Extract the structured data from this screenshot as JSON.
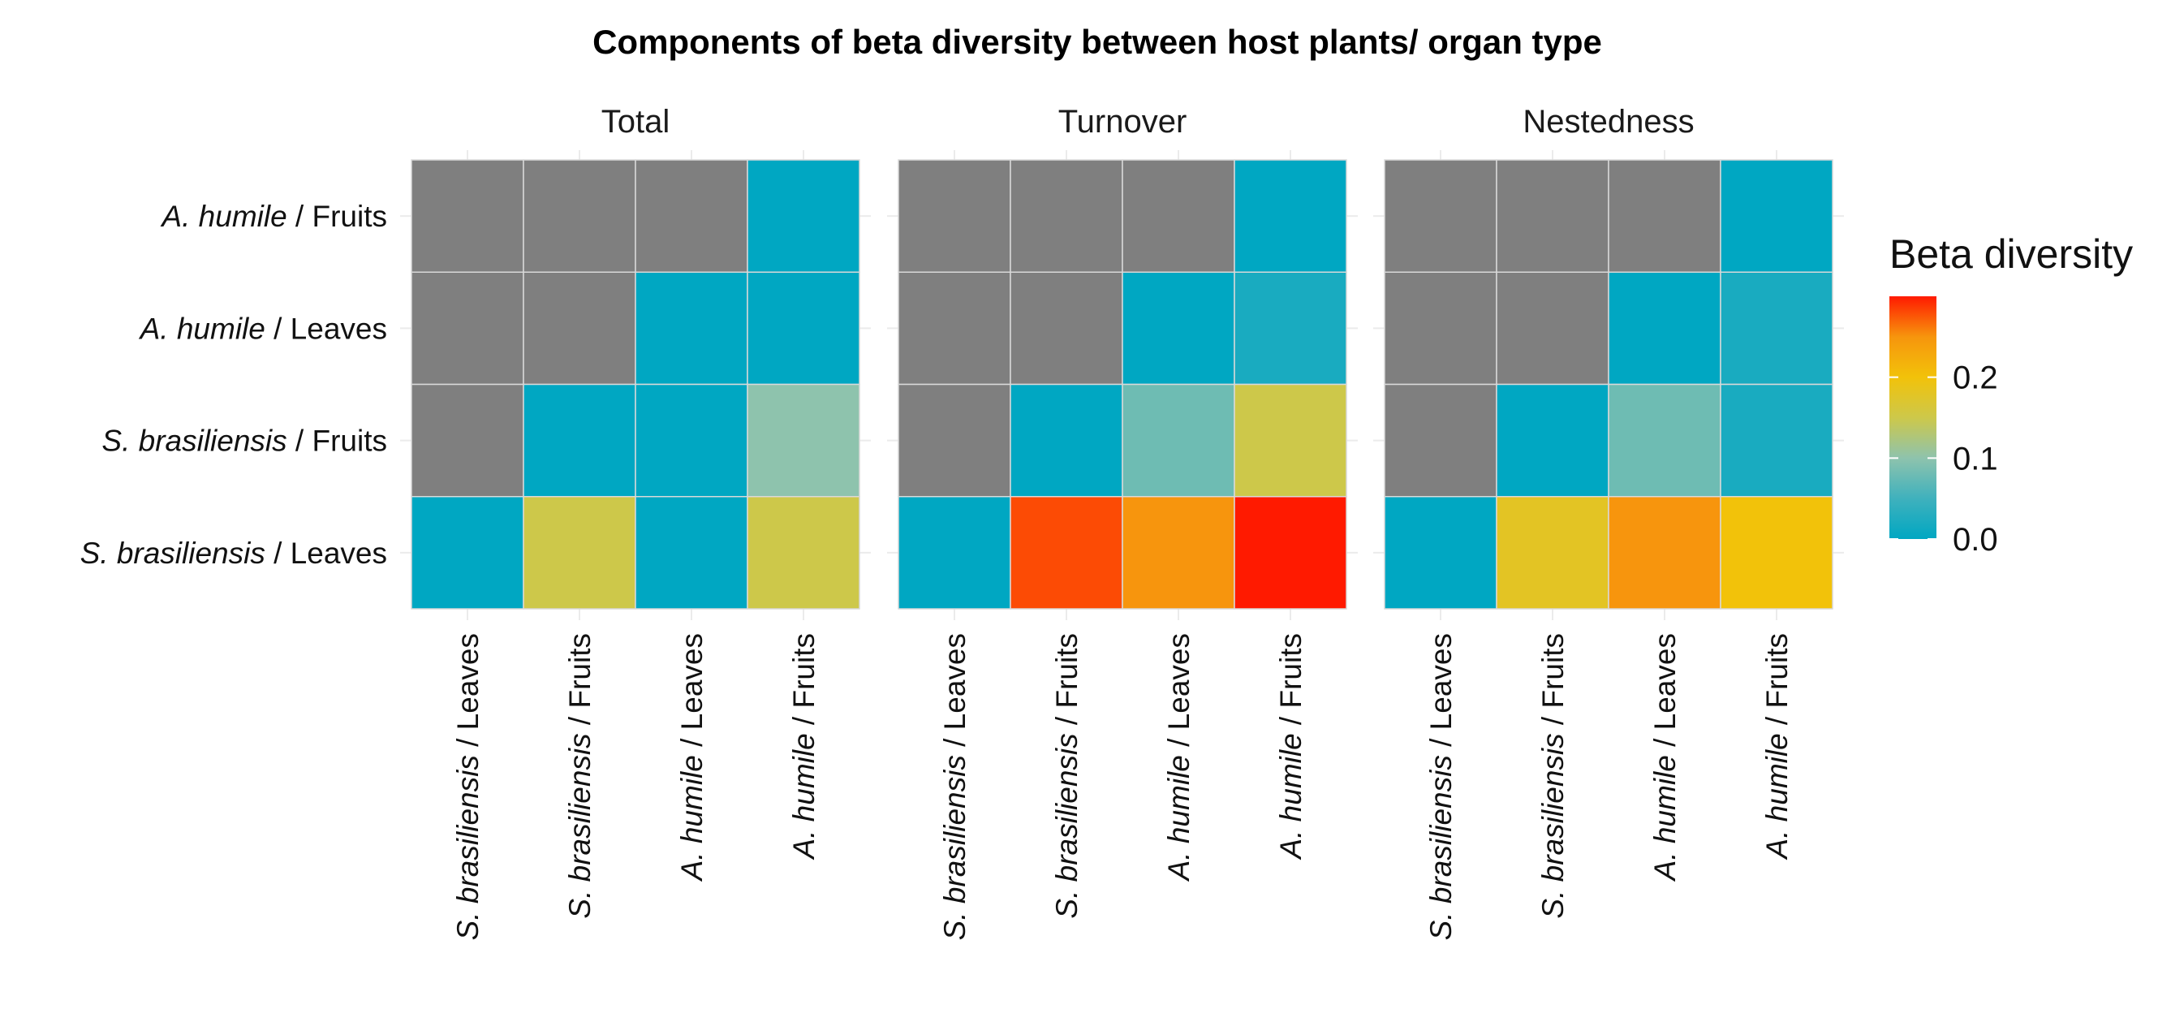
{
  "chart_data": {
    "type": "heatmap",
    "title": "Components of beta diversity between host plants/ organ type",
    "xlabel": "",
    "ylabel": "",
    "x_categories": [
      {
        "italic": "S. brasiliensis",
        "plain": " / Leaves"
      },
      {
        "italic": "S. brasiliensis",
        "plain": " / Fruits"
      },
      {
        "italic": "A. humile",
        "plain": " / Leaves"
      },
      {
        "italic": "A. humile",
        "plain": " / Fruits"
      }
    ],
    "y_categories": [
      {
        "italic": "A. humile",
        "plain": " / Fruits"
      },
      {
        "italic": "A. humile",
        "plain": " / Leaves"
      },
      {
        "italic": "S. brasiliensis",
        "plain": " / Fruits"
      },
      {
        "italic": "S. brasiliensis",
        "plain": " / Leaves"
      }
    ],
    "panels": [
      {
        "label": "Total",
        "values": [
          [
            null,
            null,
            null,
            0.0
          ],
          [
            null,
            null,
            0.0,
            0.0
          ],
          [
            null,
            0.0,
            0.0,
            0.1
          ],
          [
            0.0,
            0.15,
            0.0,
            0.15
          ]
        ]
      },
      {
        "label": "Turnover",
        "values": [
          [
            null,
            null,
            null,
            0.0
          ],
          [
            null,
            null,
            0.0,
            0.02
          ],
          [
            null,
            0.0,
            0.08,
            0.15
          ],
          [
            0.0,
            0.28,
            0.25,
            0.3
          ]
        ]
      },
      {
        "label": "Nestedness",
        "values": [
          [
            null,
            null,
            null,
            0.0
          ],
          [
            null,
            null,
            0.0,
            0.02
          ],
          [
            null,
            0.0,
            0.08,
            0.02
          ],
          [
            0.0,
            0.18,
            0.25,
            0.2
          ]
        ]
      }
    ],
    "colorbar": {
      "title": "Beta diversity",
      "range": [
        0.0,
        0.3
      ],
      "ticks": [
        0.0,
        0.1,
        0.2
      ],
      "tick_labels": [
        "0.0",
        "0.1",
        "0.2"
      ],
      "stops": [
        {
          "v": 0.0,
          "c": "#00a7c2"
        },
        {
          "v": 0.05,
          "c": "#3fb1bd"
        },
        {
          "v": 0.1,
          "c": "#8ec3ad"
        },
        {
          "v": 0.15,
          "c": "#cdc84a"
        },
        {
          "v": 0.2,
          "c": "#f2c20a"
        },
        {
          "v": 0.25,
          "c": "#f7950d"
        },
        {
          "v": 0.3,
          "c": "#ff1a00"
        }
      ],
      "na_color": "#7f7f7f"
    },
    "grid": true,
    "legend_position": "right"
  }
}
